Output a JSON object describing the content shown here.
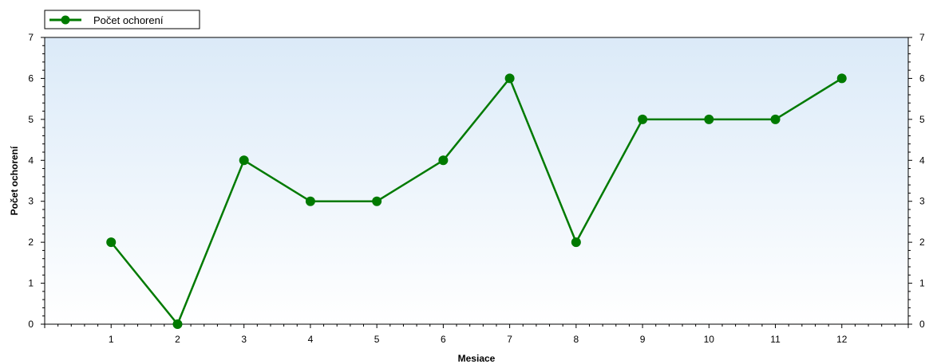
{
  "chart_data": {
    "type": "line",
    "xlabel": "Mesiace",
    "ylabel": "Počet ochorení",
    "x": [
      1,
      2,
      3,
      4,
      5,
      6,
      7,
      8,
      9,
      10,
      11,
      12
    ],
    "series": [
      {
        "name": "Počet ochorení",
        "values": [
          2,
          0,
          4,
          3,
          3,
          4,
          6,
          2,
          5,
          5,
          5,
          6
        ]
      }
    ],
    "xlim": [
      0,
      13
    ],
    "ylim": [
      0,
      7
    ],
    "yticks": [
      0,
      1,
      2,
      3,
      4,
      5,
      6,
      7
    ],
    "xticks": [
      1,
      2,
      3,
      4,
      5,
      6,
      7,
      8,
      9,
      10,
      11,
      12
    ],
    "right_axis_ticks": true,
    "grid": false,
    "legend_position": "top-left",
    "colors": {
      "series": "#007a00",
      "plot_top": "#dbeaf8",
      "plot_bottom": "#ffffff"
    }
  }
}
